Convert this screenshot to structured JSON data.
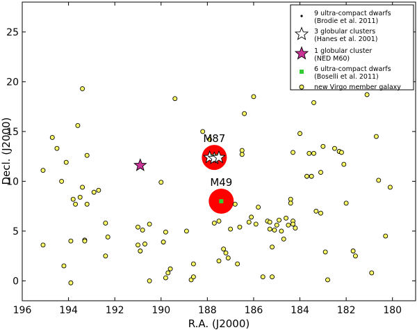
{
  "chart_data": {
    "type": "scatter",
    "xlabel": "R.A. (J2000)",
    "ylabel": "Decl. (J2000)",
    "xlim": [
      196,
      179
    ],
    "ylim": [
      -2,
      28
    ],
    "x_inverted": true,
    "xticks": [
      196,
      194,
      192,
      190,
      188,
      186,
      184,
      182,
      180
    ],
    "yticks": [
      0,
      5,
      10,
      15,
      20,
      25
    ],
    "legend_position": "top-right",
    "annotations": [
      {
        "text": "M87",
        "x": 187.7,
        "y": 12.4
      },
      {
        "text": "M49",
        "x": 187.4,
        "y": 8.0
      }
    ],
    "highlight_disks": [
      {
        "name": "M87",
        "x": 187.7,
        "y": 12.4,
        "color": "#ff0000"
      },
      {
        "name": "M49",
        "x": 187.4,
        "y": 8.0,
        "color": "#ff0000"
      }
    ],
    "series": [
      {
        "name": "new Virgo member galaxy",
        "marker": "circle",
        "color": "#ffff66",
        "edge": "#000000",
        "points": [
          [
            195.1,
            11.1
          ],
          [
            194.7,
            14.4
          ],
          [
            194.5,
            13.3
          ],
          [
            194.3,
            10.0
          ],
          [
            194.1,
            11.9
          ],
          [
            193.9,
            -0.2
          ],
          [
            193.8,
            8.2
          ],
          [
            193.7,
            7.7
          ],
          [
            193.6,
            15.6
          ],
          [
            193.5,
            8.4
          ],
          [
            193.4,
            19.3
          ],
          [
            193.4,
            9.4
          ],
          [
            193.3,
            4.1
          ],
          [
            193.3,
            4.0
          ],
          [
            193.2,
            12.6
          ],
          [
            193.2,
            7.7
          ],
          [
            192.9,
            8.9
          ],
          [
            192.7,
            9.1
          ],
          [
            192.4,
            5.8
          ],
          [
            192.3,
            4.4
          ],
          [
            192.4,
            2.5
          ],
          [
            195.1,
            3.6
          ],
          [
            194.2,
            1.5
          ],
          [
            193.9,
            4.0
          ],
          [
            191.0,
            5.4
          ],
          [
            190.8,
            5.1
          ],
          [
            191.0,
            3.6
          ],
          [
            190.9,
            3.0
          ],
          [
            190.7,
            3.7
          ],
          [
            190.5,
            5.7
          ],
          [
            190.5,
            0.0
          ],
          [
            190.0,
            9.9
          ],
          [
            189.9,
            3.9
          ],
          [
            189.8,
            4.9
          ],
          [
            189.8,
            0.3
          ],
          [
            189.7,
            0.8
          ],
          [
            189.6,
            1.2
          ],
          [
            189.4,
            18.3
          ],
          [
            188.9,
            5.0
          ],
          [
            188.7,
            0.1
          ],
          [
            188.6,
            0.4
          ],
          [
            188.6,
            1.7
          ],
          [
            188.2,
            15.0
          ],
          [
            187.9,
            14.2
          ],
          [
            187.7,
            5.8
          ],
          [
            187.5,
            2.0
          ],
          [
            187.5,
            6.0
          ],
          [
            187.3,
            3.2
          ],
          [
            187.2,
            2.8
          ],
          [
            187.1,
            2.3
          ],
          [
            187.0,
            5.2
          ],
          [
            186.8,
            7.7
          ],
          [
            186.7,
            1.7
          ],
          [
            186.6,
            5.4
          ],
          [
            186.4,
            16.8
          ],
          [
            186.5,
            13.1
          ],
          [
            186.5,
            12.7
          ],
          [
            186.2,
            5.9
          ],
          [
            186.1,
            6.4
          ],
          [
            186.0,
            18.5
          ],
          [
            185.9,
            5.7
          ],
          [
            185.8,
            7.4
          ],
          [
            185.6,
            0.4
          ],
          [
            185.4,
            6.0
          ],
          [
            185.3,
            5.9
          ],
          [
            185.3,
            5.2
          ],
          [
            185.2,
            3.4
          ],
          [
            185.2,
            0.4
          ],
          [
            185.1,
            5.1
          ],
          [
            185.0,
            5.6
          ],
          [
            184.9,
            6.1
          ],
          [
            184.8,
            5.0
          ],
          [
            184.7,
            4.2
          ],
          [
            184.6,
            6.3
          ],
          [
            184.5,
            5.6
          ],
          [
            184.4,
            8.2
          ],
          [
            184.4,
            7.8
          ],
          [
            184.3,
            12.9
          ],
          [
            184.3,
            6.0
          ],
          [
            184.3,
            5.7
          ],
          [
            184.2,
            5.3
          ],
          [
            184.0,
            14.8
          ],
          [
            183.7,
            10.5
          ],
          [
            183.6,
            12.8
          ],
          [
            183.5,
            10.5
          ],
          [
            183.4,
            17.9
          ],
          [
            183.4,
            12.8
          ],
          [
            183.3,
            7.0
          ],
          [
            183.1,
            6.8
          ],
          [
            183.1,
            10.9
          ],
          [
            183.0,
            13.5
          ],
          [
            182.9,
            2.9
          ],
          [
            182.8,
            0.1
          ],
          [
            182.5,
            13.3
          ],
          [
            182.3,
            13.0
          ],
          [
            182.2,
            12.9
          ],
          [
            182.1,
            11.7
          ],
          [
            182.0,
            7.8
          ],
          [
            181.7,
            3.0
          ],
          [
            181.6,
            2.5
          ],
          [
            181.1,
            18.7
          ],
          [
            180.9,
            0.8
          ],
          [
            180.7,
            14.5
          ],
          [
            180.6,
            10.1
          ],
          [
            180.3,
            4.5
          ],
          [
            180.1,
            9.4
          ]
        ]
      },
      {
        "name": "6 ultra-compact dwarfs",
        "citation": "(Boselli et al. 2011)",
        "marker": "square",
        "color": "#33cc33",
        "points": [
          [
            187.9,
            12.3
          ],
          [
            187.8,
            12.5
          ],
          [
            187.6,
            12.5
          ],
          [
            187.5,
            12.4
          ],
          [
            187.7,
            12.4
          ],
          [
            187.4,
            8.0
          ]
        ]
      },
      {
        "name": "9 ultra-compact dwarfs",
        "citation": "(Brodie et al. 2011)",
        "marker": "dot",
        "color": "#000000",
        "points": [
          [
            187.8,
            12.4
          ],
          [
            187.7,
            12.3
          ],
          [
            187.6,
            12.4
          ],
          [
            187.7,
            12.5
          ],
          [
            187.8,
            12.3
          ],
          [
            187.6,
            12.3
          ],
          [
            187.7,
            12.4
          ],
          [
            187.8,
            12.5
          ],
          [
            187.5,
            12.4
          ]
        ]
      },
      {
        "name": "3 globular clusters",
        "citation": "(Hanes et al. 2001)",
        "marker": "star",
        "color": "#ffffff",
        "edge": "#000000",
        "points": [
          [
            187.9,
            12.4
          ],
          [
            187.7,
            12.3
          ],
          [
            187.5,
            12.4
          ]
        ]
      },
      {
        "name": "1 globular cluster",
        "citation": "(NED M60)",
        "marker": "star",
        "color": "#cc3399",
        "edge": "#000000",
        "points": [
          [
            190.9,
            11.6
          ]
        ]
      }
    ],
    "legend": [
      {
        "marker": "dot",
        "color": "#000000",
        "line1": "9 ultra-compact dwarfs",
        "line2": "(Brodie et al. 2011)"
      },
      {
        "marker": "star",
        "color": "#ffffff",
        "line1": "3 globular clusters",
        "line2": "(Hanes et al. 2001)"
      },
      {
        "marker": "star",
        "color": "#cc3399",
        "line1": "1 globular cluster",
        "line2": "(NED M60)"
      },
      {
        "marker": "square",
        "color": "#33cc33",
        "line1": "6 ultra-compact dwarfs",
        "line2": "(Boselli et al. 2011)"
      },
      {
        "marker": "circle",
        "color": "#ffff66",
        "line1": "new Virgo member galaxy",
        "line2": ""
      }
    ]
  }
}
